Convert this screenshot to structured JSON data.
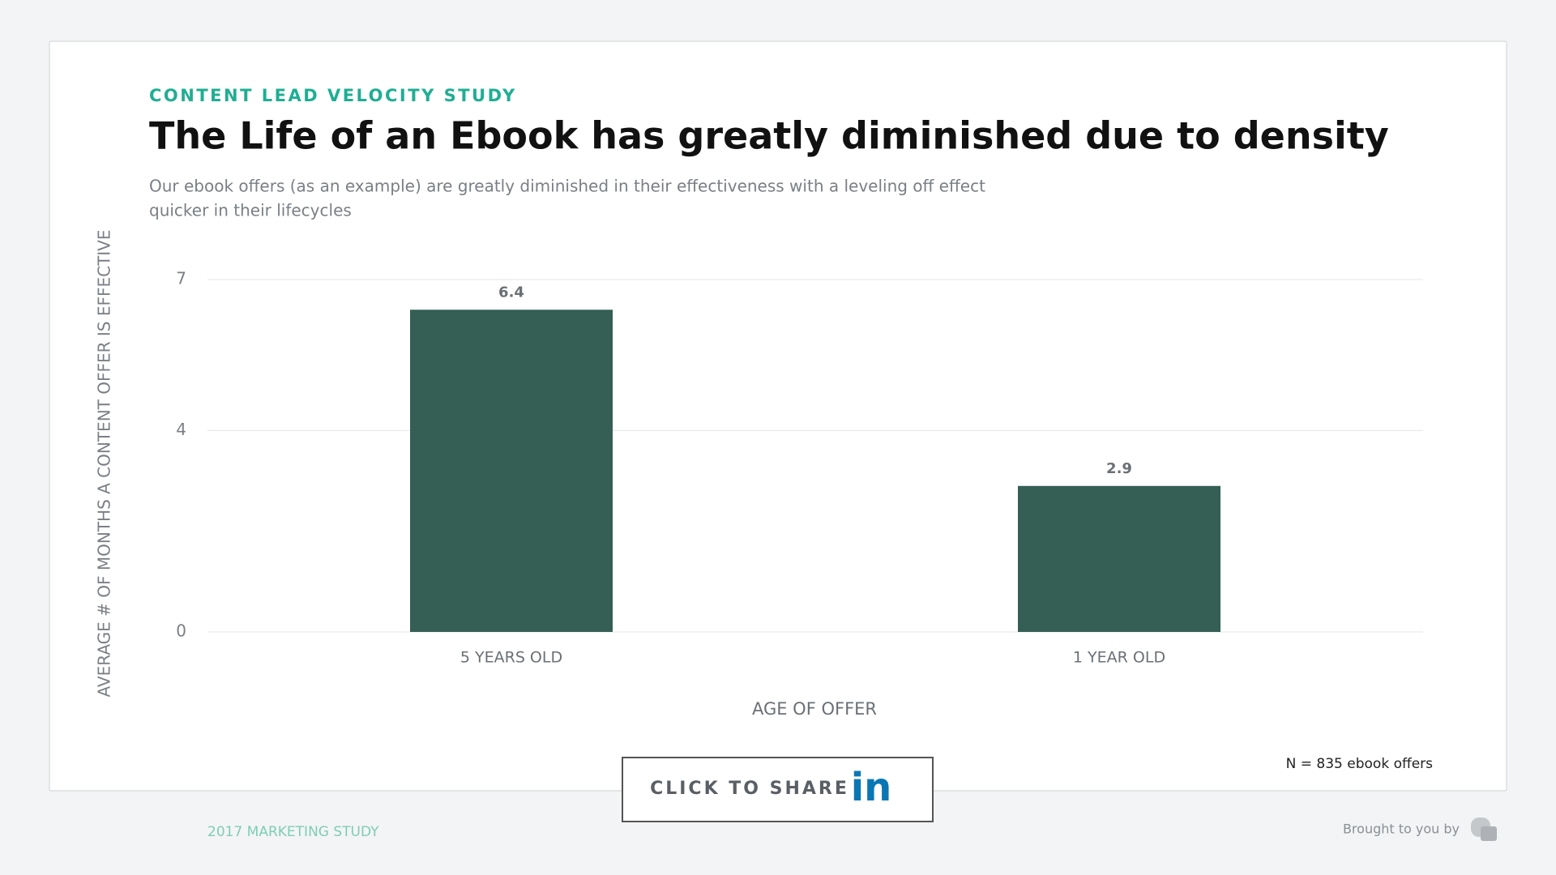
{
  "chart_data": {
    "type": "bar",
    "kicker": "CONTENT LEAD VELOCITY STUDY",
    "title": "The Life of an Ebook has greatly diminished due to density",
    "subtitle": [
      "Our ebook offers (as an example) are greatly diminished in their effectiveness with a leveling off effect",
      "quicker in their lifecycles"
    ],
    "categories": [
      "5 YEARS OLD",
      "1 YEAR OLD"
    ],
    "values": [
      6.4,
      2.9
    ],
    "color": "#355f55",
    "ylim": [
      0,
      7
    ],
    "yticks": [
      0,
      4,
      7
    ],
    "grid": true,
    "y_label": "AVERAGE # OF MONTHS A CONTENT OFFER IS EFFECTIVE",
    "x_label": "AGE OF OFFER",
    "note": "N = 835 ebook offers"
  },
  "share_button": {
    "label": "CLICK TO SHARE",
    "icon": "in"
  },
  "footer": {
    "left": "2017 MARKETING STUDY",
    "right": "Brought to you by"
  }
}
